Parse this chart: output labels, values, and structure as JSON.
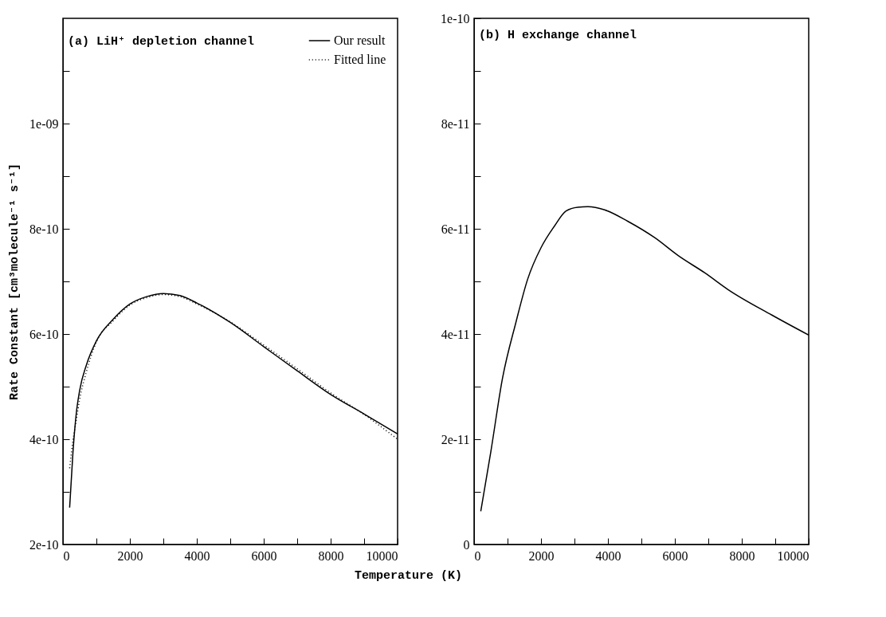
{
  "chart_data": [
    {
      "type": "line",
      "title": "(a) LiH⁺ depletion channel",
      "xlabel": "Temperature (K)",
      "ylabel": "Rate Constant [cm³molecule⁻¹ s⁻¹]",
      "xlim": [
        0,
        10000
      ],
      "xticks": [
        0,
        {
          "value": 1000,
          "label": null
        },
        2000,
        {
          "value": 3000,
          "label": null
        },
        4000,
        {
          "value": 5000,
          "label": null
        },
        6000,
        {
          "value": 7000,
          "label": null
        },
        8000,
        {
          "value": 9000,
          "label": null
        },
        10000
      ],
      "ylim": [
        2e-10,
        1.2e-09
      ],
      "yticks": [
        {
          "value": 2e-10,
          "label": "2e-10"
        },
        {
          "value": 3e-10,
          "label": null
        },
        {
          "value": 4e-10,
          "label": "4e-10"
        },
        {
          "value": 5e-10,
          "label": null
        },
        {
          "value": 6e-10,
          "label": "6e-10"
        },
        {
          "value": 7e-10,
          "label": null
        },
        {
          "value": 8e-10,
          "label": "8e-10"
        },
        {
          "value": 9e-10,
          "label": null
        },
        {
          "value": 1e-09,
          "label": "1e-09"
        },
        {
          "value": 1.1e-09,
          "label": null
        }
      ],
      "x": [
        200,
        300,
        400,
        500,
        700,
        1000,
        1500,
        2000,
        2500,
        3000,
        3500,
        4000,
        5000,
        6000,
        7000,
        8000,
        9000,
        10000
      ],
      "legend": "top right",
      "series": [
        {
          "name": "Our result",
          "color": "#000000",
          "line_style": "solid",
          "values": [
            2.7e-10,
            3.76e-10,
            4.5e-10,
            4.93e-10,
            5.41e-10,
            5.87e-10,
            6.28e-10,
            6.57e-10,
            6.71e-10,
            6.77e-10,
            6.73e-10,
            6.59e-10,
            6.22e-10,
            5.76e-10,
            5.3e-10,
            4.85e-10,
            4.48e-10,
            4.1e-10
          ]
        },
        {
          "name": "Fitted line",
          "color": "#000000",
          "line_style": "dotted",
          "values": [
            3.45e-10,
            3.98e-10,
            4.37e-10,
            4.76e-10,
            5.28e-10,
            5.85e-10,
            6.25e-10,
            6.55e-10,
            6.69e-10,
            6.75e-10,
            6.71e-10,
            6.57e-10,
            6.23e-10,
            5.79e-10,
            5.34e-10,
            4.88e-10,
            4.47e-10,
            4e-10
          ]
        }
      ]
    },
    {
      "type": "line",
      "title": "(b) H exchange channel",
      "xlim": [
        0,
        10000
      ],
      "xticks": [
        0,
        {
          "value": 1000,
          "label": null
        },
        2000,
        {
          "value": 3000,
          "label": null
        },
        4000,
        {
          "value": 5000,
          "label": null
        },
        6000,
        {
          "value": 7000,
          "label": null
        },
        8000,
        {
          "value": 9000,
          "label": null
        },
        10000
      ],
      "ylim": [
        0,
        1e-10
      ],
      "yticks": [
        0,
        {
          "value": 1e-11,
          "label": null
        },
        {
          "value": 2e-11,
          "label": "2e-11"
        },
        {
          "value": 3e-11,
          "label": null
        },
        {
          "value": 4e-11,
          "label": "4e-11"
        },
        {
          "value": 5e-11,
          "label": null
        },
        {
          "value": 6e-11,
          "label": "6e-11"
        },
        {
          "value": 7e-11,
          "label": null
        },
        {
          "value": 8e-11,
          "label": "8e-11"
        },
        {
          "value": 9e-11,
          "label": null
        },
        {
          "value": 1e-10,
          "label": "1e-10"
        }
      ],
      "x": [
        200,
        500,
        850,
        1250,
        1600,
        2000,
        2400,
        2750,
        3100,
        3400,
        3900,
        4600,
        5400,
        6100,
        6900,
        7600,
        8900,
        10000
      ],
      "series": [
        {
          "color": "#000000",
          "line_style": "solid",
          "values": [
            6.3e-12,
            1.76e-11,
            3.16e-11,
            4.22e-11,
            5.04e-11,
            5.64e-11,
            6.05e-11,
            6.34e-11,
            6.41e-11,
            6.42e-11,
            6.36e-11,
            6.14e-11,
            5.83e-11,
            5.49e-11,
            5.16e-11,
            4.84e-11,
            4.36e-11,
            3.98e-11
          ]
        }
      ]
    }
  ]
}
